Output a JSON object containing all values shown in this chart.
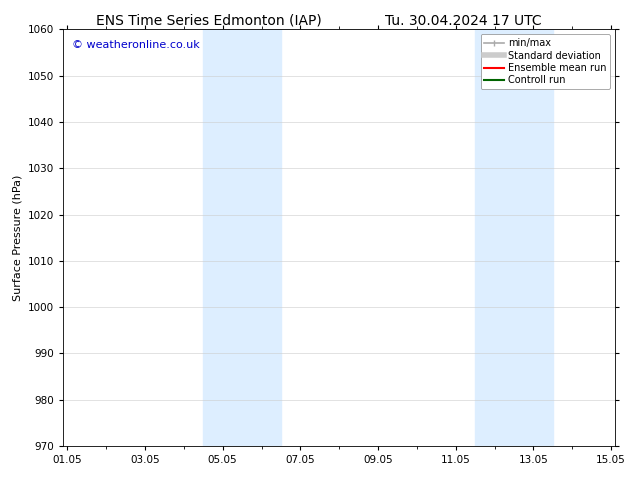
{
  "title_left": "ENS Time Series Edmonton (IAP)",
  "title_right": "Tu. 30.04.2024 17 UTC",
  "ylabel": "Surface Pressure (hPa)",
  "ylim": [
    970,
    1060
  ],
  "yticks": [
    970,
    980,
    990,
    1000,
    1010,
    1020,
    1030,
    1040,
    1050,
    1060
  ],
  "xtick_labels": [
    "01.05",
    "03.05",
    "05.05",
    "07.05",
    "09.05",
    "11.05",
    "13.05",
    "15.05"
  ],
  "xtick_positions": [
    0,
    2,
    4,
    6,
    8,
    10,
    12,
    14
  ],
  "xlim": [
    -0.1,
    14.1
  ],
  "shaded_bands": [
    {
      "xmin": 3.5,
      "xmax": 5.5,
      "color": "#ddeeff"
    },
    {
      "xmin": 10.5,
      "xmax": 12.5,
      "color": "#ddeeff"
    }
  ],
  "watermark": "© weatheronline.co.uk",
  "watermark_color": "#0000cc",
  "background_color": "#ffffff",
  "legend_entries": [
    {
      "label": "min/max",
      "color": "#aaaaaa"
    },
    {
      "label": "Standard deviation",
      "color": "#cccccc"
    },
    {
      "label": "Ensemble mean run",
      "color": "#ff0000"
    },
    {
      "label": "Controll run",
      "color": "#006400"
    }
  ],
  "title_fontsize": 10,
  "ylabel_fontsize": 8,
  "tick_fontsize": 7.5,
  "legend_fontsize": 7,
  "watermark_fontsize": 8
}
